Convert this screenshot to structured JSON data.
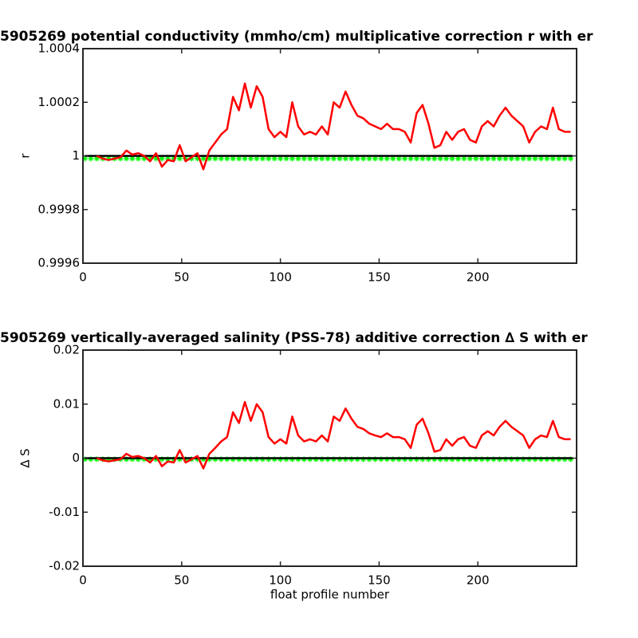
{
  "chart_data": [
    {
      "type": "line",
      "title": "5905269 potential conductivity (mmho/cm) multiplicative correction r with er",
      "ylabel": "r",
      "xlim": [
        0,
        250
      ],
      "xticks": [
        0,
        50,
        100,
        150,
        200
      ],
      "ylim": [
        0.9996,
        1.0004
      ],
      "yticks": [
        0.9996,
        0.9998,
        1,
        1.0002,
        1.0004
      ],
      "series": [
        {
          "color": "#00ff00",
          "marker": "*",
          "linestyle": "none",
          "x": [
            1,
            4,
            7,
            10,
            13,
            16,
            19,
            22,
            25,
            28,
            31,
            34,
            37,
            40,
            43,
            46,
            49,
            52,
            55,
            58,
            61,
            64,
            67,
            70,
            73,
            76,
            79,
            82,
            85,
            88,
            91,
            94,
            97,
            100,
            103,
            106,
            109,
            112,
            115,
            118,
            121,
            124,
            127,
            130,
            133,
            136,
            139,
            142,
            145,
            148,
            151,
            154,
            157,
            160,
            163,
            166,
            169,
            172,
            175,
            178,
            181,
            184,
            187,
            190,
            193,
            196,
            199,
            202,
            205,
            208,
            211,
            214,
            217,
            220,
            223,
            226,
            229,
            232,
            235,
            238,
            241,
            244,
            247
          ],
          "values": [
            0.99999,
            0.99999,
            0.99999,
            0.99999,
            0.99999,
            0.99999,
            0.99999,
            0.99999,
            0.99999,
            0.99999,
            0.99999,
            0.99999,
            0.99999,
            0.99999,
            0.99999,
            0.99999,
            0.99999,
            0.99999,
            0.99999,
            0.99999,
            0.99999,
            0.99999,
            0.99999,
            0.99999,
            0.99999,
            0.99999,
            0.99999,
            0.99999,
            0.99999,
            0.99999,
            0.99999,
            0.99999,
            0.99999,
            0.99999,
            0.99999,
            0.99999,
            0.99999,
            0.99999,
            0.99999,
            0.99999,
            0.99999,
            0.99999,
            0.99999,
            0.99999,
            0.99999,
            0.99999,
            0.99999,
            0.99999,
            0.99999,
            0.99999,
            0.99999,
            0.99999,
            0.99999,
            0.99999,
            0.99999,
            0.99999,
            0.99999,
            0.99999,
            0.99999,
            0.99999,
            0.99999,
            0.99999,
            0.99999,
            0.99999,
            0.99999,
            0.99999,
            0.99999,
            0.99999,
            0.99999,
            0.99999,
            0.99999,
            0.99999,
            0.99999,
            0.99999,
            0.99999,
            0.99999,
            0.99999,
            0.99999,
            0.99999,
            0.99999,
            0.99999,
            0.99999,
            0.99999
          ]
        },
        {
          "color": "#000000",
          "linestyle": "solid",
          "x": [
            1,
            248
          ],
          "values": [
            1,
            1
          ]
        },
        {
          "color": "#ff0000",
          "linestyle": "solid",
          "x": [
            7,
            10,
            13,
            16,
            19,
            22,
            25,
            28,
            31,
            34,
            37,
            40,
            43,
            46,
            49,
            52,
            55,
            58,
            61,
            64,
            67,
            70,
            73,
            76,
            79,
            82,
            85,
            88,
            91,
            94,
            97,
            100,
            103,
            106,
            109,
            112,
            115,
            118,
            121,
            124,
            127,
            130,
            133,
            136,
            139,
            142,
            145,
            148,
            151,
            154,
            157,
            160,
            163,
            166,
            169,
            172,
            175,
            178,
            181,
            184,
            187,
            190,
            193,
            196,
            199,
            202,
            205,
            208,
            211,
            214,
            217,
            220,
            223,
            226,
            229,
            232,
            235,
            238,
            241,
            244,
            247
          ],
          "values": [
            1.0,
            0.99999,
            0.999985,
            0.99999,
            0.999995,
            1.00002,
            1.000005,
            1.00001,
            1.0,
            0.99998,
            1.00001,
            0.99996,
            0.999985,
            0.99998,
            1.00004,
            0.99998,
            0.999995,
            1.00001,
            0.99995,
            1.00002,
            1.00005,
            1.00008,
            1.0001,
            1.00022,
            1.00017,
            1.00027,
            1.00018,
            1.00026,
            1.00022,
            1.0001,
            1.00007,
            1.00009,
            1.00007,
            1.0002,
            1.00011,
            1.00008,
            1.00009,
            1.00008,
            1.00011,
            1.00008,
            1.0002,
            1.00018,
            1.00024,
            1.00019,
            1.00015,
            1.00014,
            1.00012,
            1.00011,
            1.0001,
            1.00012,
            1.0001,
            1.0001,
            1.00009,
            1.00005,
            1.00016,
            1.00019,
            1.00012,
            1.00003,
            1.00004,
            1.00009,
            1.00006,
            1.00009,
            1.0001,
            1.00006,
            1.00005,
            1.00011,
            1.00013,
            1.00011,
            1.00015,
            1.00018,
            1.00015,
            1.00013,
            1.00011,
            1.00005,
            1.00009,
            1.00011,
            1.0001,
            1.00018,
            1.0001,
            1.00009,
            1.00009
          ]
        }
      ]
    },
    {
      "type": "line",
      "title": "5905269 vertically-averaged salinity (PSS-78) additive correction ∆ S with er",
      "ylabel": "∆ S",
      "xlabel": "float profile number",
      "xlim": [
        0,
        250
      ],
      "xticks": [
        0,
        50,
        100,
        150,
        200
      ],
      "ylim": [
        -0.02,
        0.02
      ],
      "yticks": [
        -0.02,
        -0.01,
        0,
        0.01,
        0.02
      ],
      "series": [
        {
          "color": "#00ff00",
          "marker": "*",
          "linestyle": "none",
          "x": [
            1,
            4,
            7,
            10,
            13,
            16,
            19,
            22,
            25,
            28,
            31,
            34,
            37,
            40,
            43,
            46,
            49,
            52,
            55,
            58,
            61,
            64,
            67,
            70,
            73,
            76,
            79,
            82,
            85,
            88,
            91,
            94,
            97,
            100,
            103,
            106,
            109,
            112,
            115,
            118,
            121,
            124,
            127,
            130,
            133,
            136,
            139,
            142,
            145,
            148,
            151,
            154,
            157,
            160,
            163,
            166,
            169,
            172,
            175,
            178,
            181,
            184,
            187,
            190,
            193,
            196,
            199,
            202,
            205,
            208,
            211,
            214,
            217,
            220,
            223,
            226,
            229,
            232,
            235,
            238,
            241,
            244,
            247
          ],
          "values": [
            -0.0002,
            -0.0002,
            -0.0002,
            -0.0002,
            -0.0002,
            -0.0002,
            -0.0002,
            -0.0002,
            -0.0002,
            -0.0002,
            -0.0002,
            -0.0002,
            -0.0002,
            -0.0002,
            -0.0002,
            -0.0002,
            -0.0002,
            -0.0002,
            -0.0002,
            -0.0002,
            -0.0002,
            -0.0002,
            -0.0002,
            -0.0002,
            -0.0002,
            -0.0002,
            -0.0002,
            -0.0002,
            -0.0002,
            -0.0002,
            -0.0002,
            -0.0002,
            -0.0002,
            -0.0002,
            -0.0002,
            -0.0002,
            -0.0002,
            -0.0002,
            -0.0002,
            -0.0002,
            -0.0002,
            -0.0002,
            -0.0002,
            -0.0002,
            -0.0002,
            -0.0002,
            -0.0002,
            -0.0002,
            -0.0002,
            -0.0002,
            -0.0002,
            -0.0002,
            -0.0002,
            -0.0002,
            -0.0002,
            -0.0002,
            -0.0002,
            -0.0002,
            -0.0002,
            -0.0002,
            -0.0002,
            -0.0002,
            -0.0002,
            -0.0002,
            -0.0002,
            -0.0002,
            -0.0002,
            -0.0002,
            -0.0002,
            -0.0002,
            -0.0002,
            -0.0002,
            -0.0002,
            -0.0002,
            -0.0002,
            -0.0002,
            -0.0002,
            -0.0002,
            -0.0002,
            -0.0002,
            -0.0002,
            -0.0002,
            -0.0002
          ]
        },
        {
          "color": "#000000",
          "linestyle": "solid",
          "x": [
            1,
            248
          ],
          "values": [
            0,
            0
          ]
        },
        {
          "color": "#ff0000",
          "linestyle": "solid",
          "x": [
            7,
            10,
            13,
            16,
            19,
            22,
            25,
            28,
            31,
            34,
            37,
            40,
            43,
            46,
            49,
            52,
            55,
            58,
            61,
            64,
            67,
            70,
            73,
            76,
            79,
            82,
            85,
            88,
            91,
            94,
            97,
            100,
            103,
            106,
            109,
            112,
            115,
            118,
            121,
            124,
            127,
            130,
            133,
            136,
            139,
            142,
            145,
            148,
            151,
            154,
            157,
            160,
            163,
            166,
            169,
            172,
            175,
            178,
            181,
            184,
            187,
            190,
            193,
            196,
            199,
            202,
            205,
            208,
            211,
            214,
            217,
            220,
            223,
            226,
            229,
            232,
            235,
            238,
            241,
            244,
            247
          ],
          "values": [
            0,
            -0.0004,
            -0.0006,
            -0.0004,
            -0.0002,
            0.0008,
            0.0002,
            0.0004,
            0,
            -0.0008,
            0.0004,
            -0.0015,
            -0.0006,
            -0.0008,
            0.0015,
            -0.0008,
            -0.0002,
            0.0004,
            -0.0019,
            0.0008,
            0.0019,
            0.0031,
            0.0039,
            0.0085,
            0.0065,
            0.0104,
            0.0069,
            0.01,
            0.0085,
            0.0039,
            0.0027,
            0.0035,
            0.0027,
            0.0077,
            0.0042,
            0.0031,
            0.0035,
            0.0031,
            0.0042,
            0.0031,
            0.0077,
            0.0069,
            0.0092,
            0.0073,
            0.0058,
            0.0054,
            0.0046,
            0.0042,
            0.0039,
            0.0046,
            0.0039,
            0.0039,
            0.0035,
            0.0019,
            0.0062,
            0.0073,
            0.0046,
            0.0012,
            0.0015,
            0.0035,
            0.0023,
            0.0035,
            0.0039,
            0.0023,
            0.0019,
            0.0042,
            0.005,
            0.0042,
            0.0058,
            0.0069,
            0.0058,
            0.005,
            0.0042,
            0.0019,
            0.0035,
            0.0042,
            0.0039,
            0.0069,
            0.0039,
            0.0035,
            0.0035
          ]
        }
      ]
    }
  ]
}
